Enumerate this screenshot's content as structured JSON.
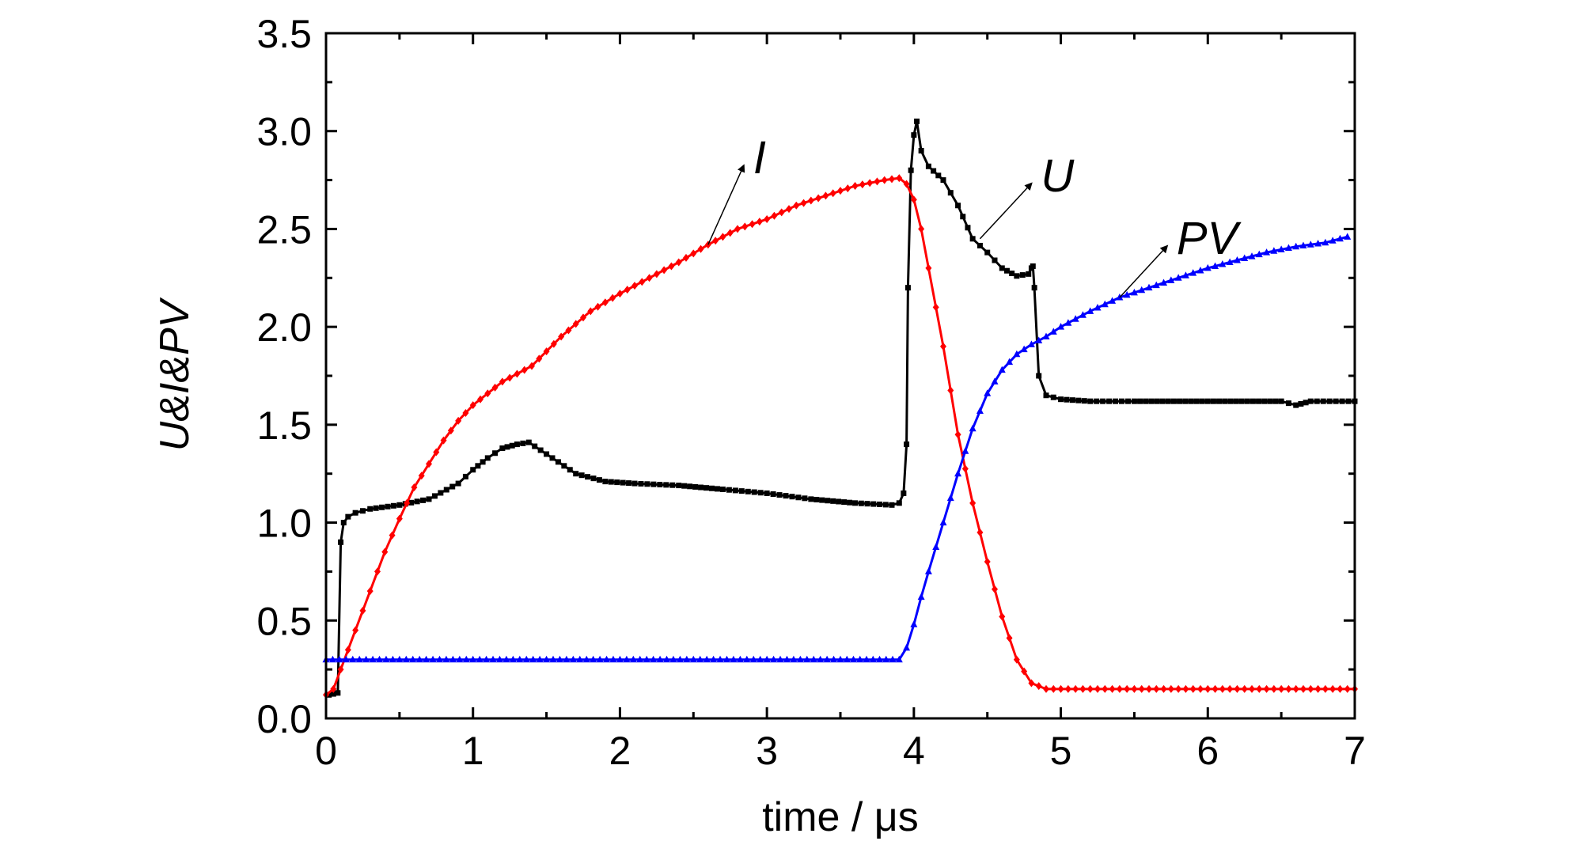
{
  "chart_data": {
    "type": "line",
    "xlabel": "time / μs",
    "ylabel": "U&I&PV",
    "xlim": [
      0,
      7
    ],
    "ylim": [
      0,
      3.5
    ],
    "x_ticks": [
      "0",
      "1",
      "2",
      "3",
      "4",
      "5",
      "6",
      "7"
    ],
    "y_ticks": [
      "0.0",
      "0.5",
      "1.0",
      "1.5",
      "2.0",
      "2.5",
      "3.0",
      "3.5"
    ],
    "grid": false,
    "legend": "none",
    "series": [
      {
        "name": "U",
        "color": "#000000",
        "marker": "square",
        "x": [
          0.02,
          0.08,
          0.1,
          0.12,
          0.15,
          0.2,
          0.3,
          0.5,
          0.7,
          0.9,
          1.0,
          1.1,
          1.2,
          1.3,
          1.38,
          1.5,
          1.7,
          1.9,
          2.1,
          2.4,
          2.7,
          3.0,
          3.3,
          3.6,
          3.85,
          3.9,
          3.93,
          3.95,
          3.96,
          3.98,
          4.0,
          4.02,
          4.05,
          4.1,
          4.2,
          4.3,
          4.4,
          4.5,
          4.6,
          4.7,
          4.78,
          4.8,
          4.81,
          4.82,
          4.85,
          4.9,
          5.0,
          5.2,
          5.5,
          6.0,
          6.5,
          6.6,
          6.7,
          7.0
        ],
        "y": [
          0.12,
          0.13,
          0.9,
          1.0,
          1.03,
          1.05,
          1.07,
          1.09,
          1.12,
          1.2,
          1.27,
          1.33,
          1.38,
          1.4,
          1.41,
          1.35,
          1.25,
          1.21,
          1.2,
          1.19,
          1.17,
          1.15,
          1.12,
          1.1,
          1.09,
          1.1,
          1.15,
          1.4,
          2.2,
          2.8,
          2.98,
          3.05,
          2.9,
          2.82,
          2.75,
          2.62,
          2.45,
          2.38,
          2.3,
          2.26,
          2.27,
          2.3,
          2.31,
          2.2,
          1.75,
          1.65,
          1.63,
          1.62,
          1.62,
          1.62,
          1.62,
          1.6,
          1.62,
          1.62
        ]
      },
      {
        "name": "I",
        "color": "#ff0000",
        "marker": "diamond",
        "x": [
          0.0,
          0.05,
          0.1,
          0.2,
          0.3,
          0.4,
          0.5,
          0.6,
          0.7,
          0.8,
          0.9,
          1.0,
          1.2,
          1.4,
          1.6,
          1.8,
          2.0,
          2.2,
          2.4,
          2.6,
          2.8,
          3.0,
          3.2,
          3.4,
          3.6,
          3.8,
          3.9,
          3.95,
          4.0,
          4.05,
          4.1,
          4.2,
          4.3,
          4.4,
          4.5,
          4.6,
          4.7,
          4.8,
          4.9,
          5.0,
          5.5,
          6.0,
          6.5,
          7.0
        ],
        "y": [
          0.12,
          0.15,
          0.25,
          0.45,
          0.65,
          0.85,
          1.02,
          1.18,
          1.3,
          1.42,
          1.52,
          1.6,
          1.72,
          1.8,
          1.95,
          2.08,
          2.17,
          2.25,
          2.33,
          2.42,
          2.5,
          2.55,
          2.62,
          2.67,
          2.72,
          2.75,
          2.76,
          2.73,
          2.65,
          2.5,
          2.3,
          1.9,
          1.45,
          1.1,
          0.8,
          0.52,
          0.3,
          0.18,
          0.15,
          0.15,
          0.15,
          0.15,
          0.15,
          0.15
        ]
      },
      {
        "name": "PV",
        "color": "#0000ff",
        "marker": "triangle",
        "x": [
          0.0,
          0.5,
          1.0,
          2.0,
          3.0,
          3.5,
          3.9,
          3.95,
          4.0,
          4.05,
          4.1,
          4.2,
          4.3,
          4.4,
          4.5,
          4.6,
          4.7,
          4.8,
          4.9,
          5.0,
          5.2,
          5.4,
          5.6,
          5.8,
          6.0,
          6.2,
          6.4,
          6.6,
          6.8,
          6.95
        ],
        "y": [
          0.3,
          0.3,
          0.3,
          0.3,
          0.3,
          0.3,
          0.3,
          0.36,
          0.48,
          0.62,
          0.75,
          1.0,
          1.25,
          1.48,
          1.66,
          1.78,
          1.86,
          1.91,
          1.95,
          2.0,
          2.08,
          2.15,
          2.2,
          2.25,
          2.3,
          2.34,
          2.38,
          2.41,
          2.43,
          2.46
        ]
      }
    ],
    "annotations": [
      {
        "text": "I",
        "series": "I",
        "at_x": 2.6,
        "at_y": 2.42
      },
      {
        "text": "U",
        "series": "U",
        "at_x": 4.45,
        "at_y": 2.45
      },
      {
        "text": "PV",
        "series": "PV",
        "at_x": 5.4,
        "at_y": 2.15
      }
    ]
  }
}
